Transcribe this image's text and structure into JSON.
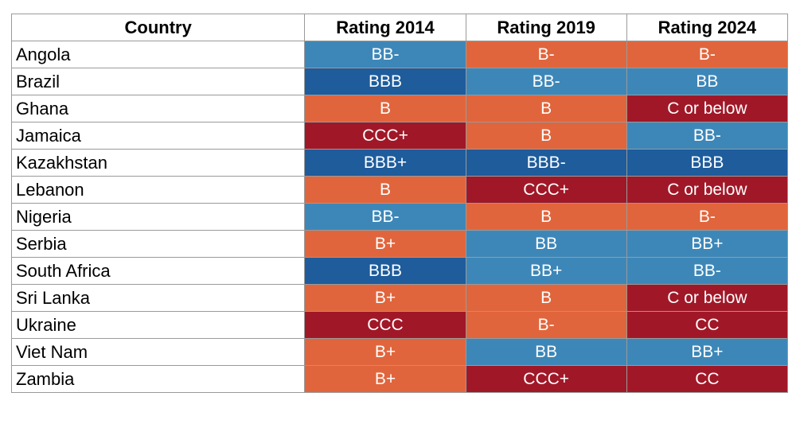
{
  "chart_data": {
    "type": "table",
    "columns": [
      "Country",
      "Rating 2014",
      "Rating 2019",
      "Rating 2024"
    ],
    "rows": [
      {
        "country": "Angola",
        "ratings": [
          "BB-",
          "B-",
          "B-"
        ]
      },
      {
        "country": "Brazil",
        "ratings": [
          "BBB",
          "BB-",
          "BB"
        ]
      },
      {
        "country": "Ghana",
        "ratings": [
          "B",
          "B",
          "C or below"
        ]
      },
      {
        "country": "Jamaica",
        "ratings": [
          "CCC+",
          "B",
          "BB-"
        ]
      },
      {
        "country": "Kazakhstan",
        "ratings": [
          "BBB+",
          "BBB-",
          "BBB"
        ]
      },
      {
        "country": "Lebanon",
        "ratings": [
          "B",
          "CCC+",
          "C or below"
        ]
      },
      {
        "country": "Nigeria",
        "ratings": [
          "BB-",
          "B",
          "B-"
        ]
      },
      {
        "country": "Serbia",
        "ratings": [
          "B+",
          "BB",
          "BB+"
        ]
      },
      {
        "country": "South Africa",
        "ratings": [
          "BBB",
          "BB+",
          "BB-"
        ]
      },
      {
        "country": "Sri Lanka",
        "ratings": [
          "B+",
          "B",
          "C or below"
        ]
      },
      {
        "country": "Ukraine",
        "ratings": [
          "CCC",
          "B-",
          "CC"
        ]
      },
      {
        "country": "Viet Nam",
        "ratings": [
          "B+",
          "BB",
          "BB+"
        ]
      },
      {
        "country": "Zambia",
        "ratings": [
          "B+",
          "CCC+",
          "CC"
        ]
      }
    ],
    "tier_colors": {
      "investment_grade": "#1e5c9c",
      "speculative_bb": "#3d87b8",
      "highly_speculative_b": "#e1653c",
      "default_risk_ccc_and_below": "#a01828"
    },
    "rating_tiers": {
      "BBB+": "investment_grade",
      "BBB": "investment_grade",
      "BBB-": "investment_grade",
      "BB+": "speculative_bb",
      "BB": "speculative_bb",
      "BB-": "speculative_bb",
      "B+": "highly_speculative_b",
      "B": "highly_speculative_b",
      "B-": "highly_speculative_b",
      "CCC+": "default_risk_ccc_and_below",
      "CCC": "default_risk_ccc_and_below",
      "CC": "default_risk_ccc_and_below",
      "C or below": "default_risk_ccc_and_below"
    }
  }
}
